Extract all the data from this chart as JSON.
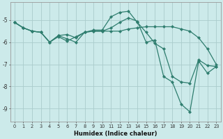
{
  "xlabel": "Humidex (Indice chaleur)",
  "bg_color": "#cceaea",
  "grid_color": "#aacccc",
  "line_color": "#2e7d6e",
  "xlim": [
    -0.5,
    23.5
  ],
  "ylim": [
    -9.6,
    -4.2
  ],
  "yticks": [
    -9,
    -8,
    -7,
    -6,
    -5
  ],
  "xticks": [
    0,
    1,
    2,
    3,
    4,
    5,
    6,
    7,
    8,
    9,
    10,
    11,
    12,
    13,
    14,
    15,
    16,
    17,
    18,
    19,
    20,
    21,
    22,
    23
  ],
  "line1_y": [
    -5.1,
    -5.35,
    -5.5,
    -5.55,
    -6.0,
    -5.7,
    -5.65,
    -5.8,
    -5.55,
    -5.45,
    -5.45,
    -4.85,
    -4.65,
    -4.6,
    -5.1,
    -5.55,
    -6.05,
    -6.3,
    -7.55,
    -7.8,
    -7.85,
    -6.8,
    -7.05,
    -7.1
  ],
  "line2_y": [
    -5.1,
    -5.35,
    -5.5,
    -5.55,
    -6.0,
    -5.7,
    -5.85,
    -6.0,
    -5.55,
    -5.5,
    -5.5,
    -5.5,
    -5.5,
    -5.4,
    -5.35,
    -5.3,
    -5.3,
    -5.3,
    -5.3,
    -5.4,
    -5.5,
    -5.8,
    -6.3,
    -7.0
  ],
  "line3_y": [
    -5.1,
    -5.35,
    -5.5,
    -5.55,
    -6.0,
    -5.75,
    -5.95,
    -5.75,
    -5.55,
    -5.5,
    -5.5,
    -5.35,
    -5.1,
    -4.9,
    -5.05,
    -6.0,
    -5.9,
    -7.55,
    -7.8,
    -8.8,
    -9.15,
    -6.85,
    -7.4,
    -7.1
  ]
}
